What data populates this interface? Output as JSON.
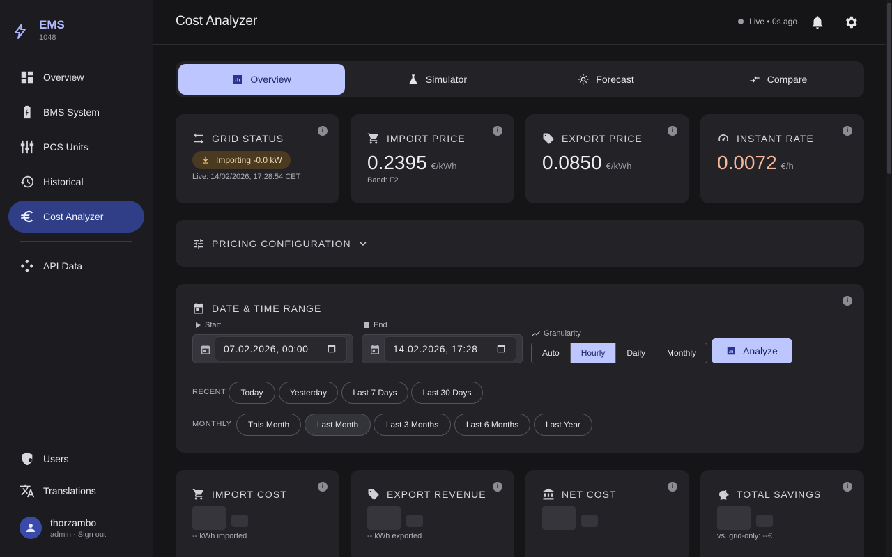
{
  "brand": {
    "name": "EMS",
    "version": "1048"
  },
  "sidebar": {
    "items": [
      {
        "label": "Overview",
        "icon": "dashboard-icon"
      },
      {
        "label": "BMS System",
        "icon": "battery-icon"
      },
      {
        "label": "PCS Units",
        "icon": "tune-icon"
      },
      {
        "label": "Historical",
        "icon": "history-icon"
      },
      {
        "label": "Cost Analyzer",
        "icon": "euro-icon",
        "active": true
      },
      {
        "label": "API Data",
        "icon": "api-icon"
      }
    ],
    "bottom": [
      {
        "label": "Users",
        "icon": "user-shield-icon"
      },
      {
        "label": "Translations",
        "icon": "translate-icon"
      }
    ],
    "user": {
      "name": "thorzambo",
      "role": "admin · Sign out"
    }
  },
  "header": {
    "title": "Cost Analyzer",
    "live": "Live • 0s ago"
  },
  "tabs": [
    {
      "label": "Overview",
      "icon": "bar-chart-icon",
      "active": true
    },
    {
      "label": "Simulator",
      "icon": "flask-icon"
    },
    {
      "label": "Forecast",
      "icon": "sun-icon"
    },
    {
      "label": "Compare",
      "icon": "compare-arrows-icon"
    }
  ],
  "kpis": {
    "grid": {
      "title": "GRID STATUS",
      "badge": "Importing -0.0 kW",
      "sub": "Live: 14/02/2026, 17:28:54 CET"
    },
    "import": {
      "title": "IMPORT PRICE",
      "value": "0.2395",
      "unit": "€/kWh",
      "sub": "Band: F2"
    },
    "export": {
      "title": "EXPORT PRICE",
      "value": "0.0850",
      "unit": "€/kWh"
    },
    "instant": {
      "title": "INSTANT RATE",
      "value": "0.0072",
      "unit": "€/h",
      "color": "#f5b79a"
    }
  },
  "pricing": {
    "title": "PRICING CONFIGURATION"
  },
  "range": {
    "title": "DATE & TIME RANGE",
    "start_label": "Start",
    "start_value": "07.02.2026, 00:00",
    "end_label": "End",
    "end_value": "14.02.2026, 17:28",
    "granularity_label": "Granularity",
    "granularity": [
      "Auto",
      "Hourly",
      "Daily",
      "Monthly"
    ],
    "granularity_selected": "Hourly",
    "analyze": "Analyze",
    "recent_label": "RECENT",
    "recent": [
      "Today",
      "Yesterday",
      "Last 7 Days",
      "Last 30 Days"
    ],
    "monthly_label": "MONTHLY",
    "monthly": [
      "This Month",
      "Last Month",
      "Last 3 Months",
      "Last 6 Months",
      "Last Year"
    ],
    "monthly_selected": "Last Month"
  },
  "summary": {
    "import_cost": {
      "title": "IMPORT COST",
      "sub": "-- kWh imported"
    },
    "export_revenue": {
      "title": "EXPORT REVENUE",
      "sub": "-- kWh exported"
    },
    "net_cost": {
      "title": "NET COST",
      "sub": ""
    },
    "total_savings": {
      "title": "TOTAL SAVINGS",
      "sub": "vs. grid-only: --€"
    }
  }
}
